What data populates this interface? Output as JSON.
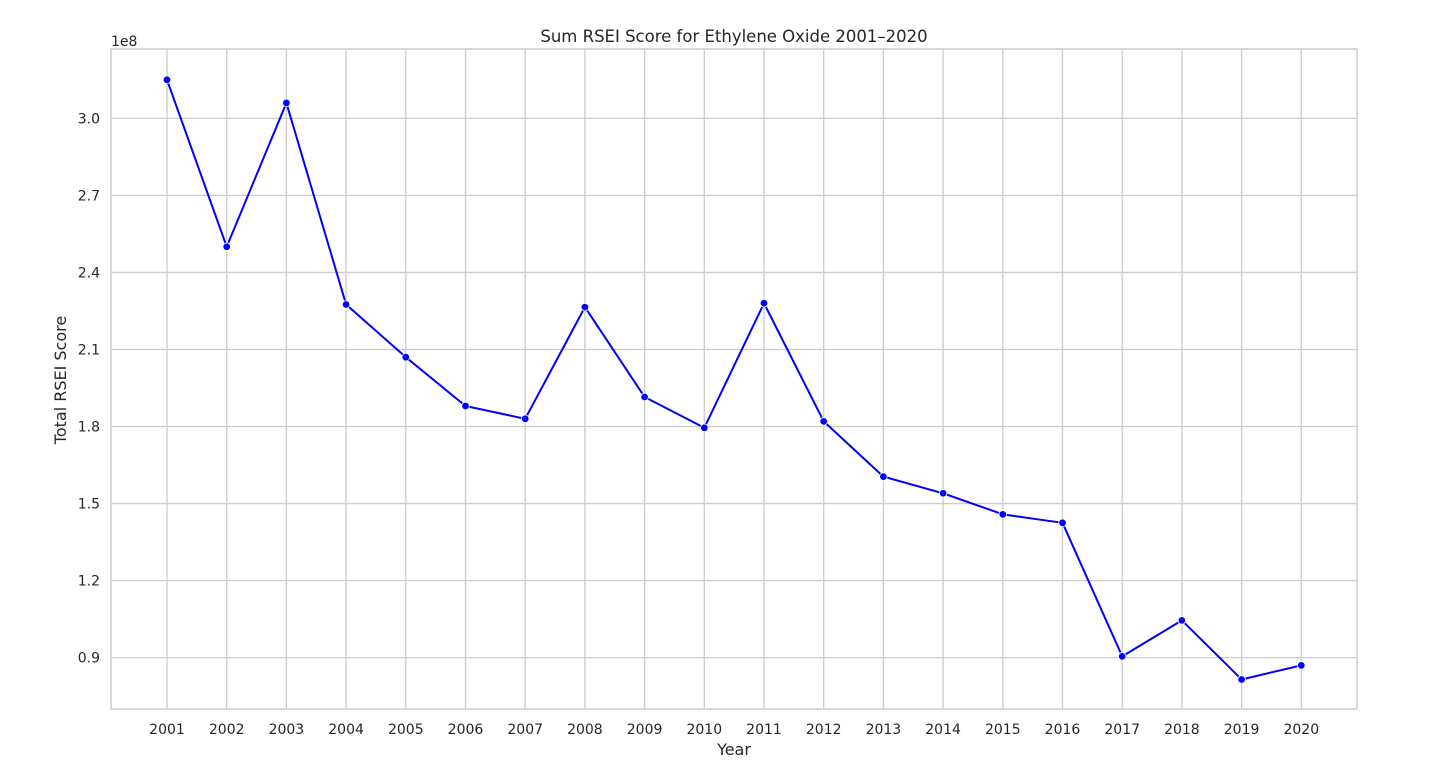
{
  "chart_data": {
    "type": "line",
    "title": "Sum RSEI Score for Ethylene Oxide 2001–2020",
    "xlabel": "Year",
    "ylabel": "Total RSEI Score",
    "y_offset_label": "1e8",
    "x": [
      "2001",
      "2002",
      "2003",
      "2004",
      "2005",
      "2006",
      "2007",
      "2008",
      "2009",
      "2010",
      "2011",
      "2012",
      "2013",
      "2014",
      "2015",
      "2016",
      "2017",
      "2018",
      "2019",
      "2020"
    ],
    "y_ticks": [
      "0.9",
      "1.2",
      "1.5",
      "1.8",
      "2.1",
      "2.4",
      "2.7",
      "3.0"
    ],
    "ylim": [
      0.7,
      3.27
    ],
    "series": [
      {
        "color": "#0000ff",
        "marker": "circle",
        "values": [
          3.15,
          2.5,
          3.06,
          2.275,
          2.07,
          1.88,
          1.83,
          2.265,
          1.915,
          1.795,
          2.28,
          1.82,
          1.605,
          1.54,
          1.458,
          1.425,
          0.905,
          1.045,
          0.815,
          0.87
        ]
      }
    ],
    "grid": true,
    "legend": "none"
  }
}
